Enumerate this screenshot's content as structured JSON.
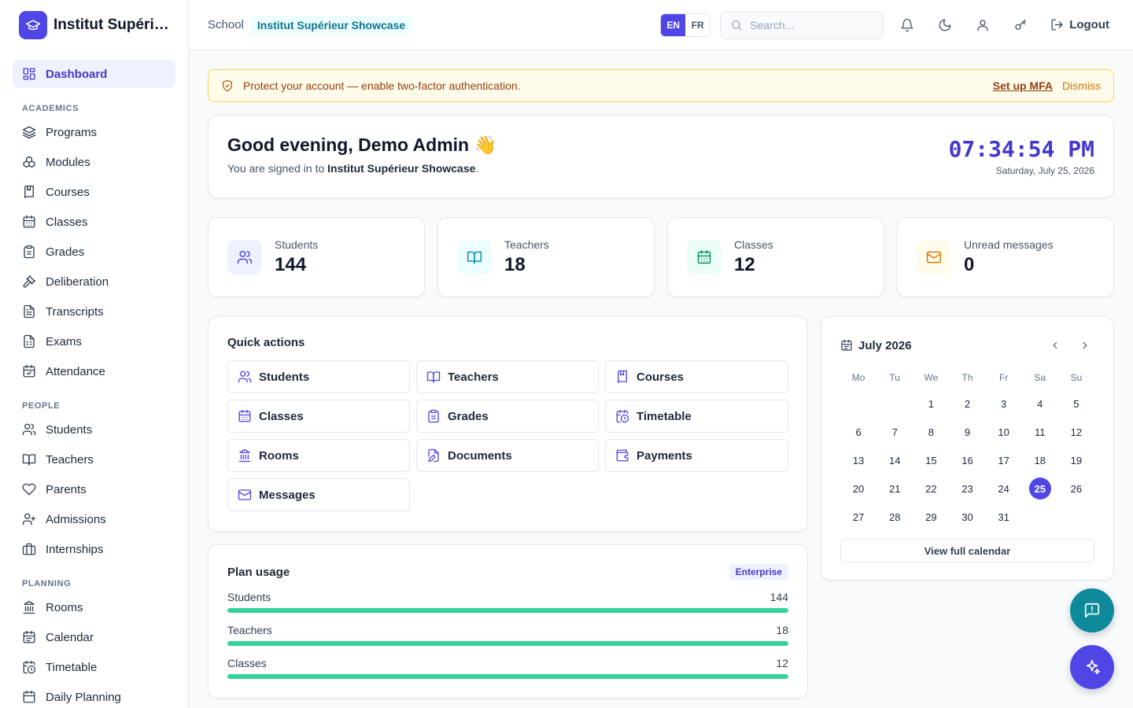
{
  "brand": {
    "name": "Institut Supérieur Showcase"
  },
  "sidebar": {
    "dashboard": "Dashboard",
    "sections": {
      "academics": "ACADEMICS",
      "people": "PEOPLE",
      "planning": "PLANNING"
    },
    "academics": [
      "Programs",
      "Modules",
      "Courses",
      "Classes",
      "Grades",
      "Deliberation",
      "Transcripts",
      "Exams",
      "Attendance"
    ],
    "people": [
      "Students",
      "Teachers",
      "Parents",
      "Admissions",
      "Internships"
    ],
    "planning": [
      "Rooms",
      "Calendar",
      "Timetable",
      "Daily Planning"
    ]
  },
  "topbar": {
    "crumb_label": "School",
    "school_name": "Institut Supérieur Showcase",
    "lang_en": "EN",
    "lang_fr": "FR",
    "search_placeholder": "Search...",
    "logout": "Logout"
  },
  "alert": {
    "text": "Protect your account — enable two-factor authentication.",
    "action": "Set up MFA",
    "dismiss": "Dismiss"
  },
  "greeting": {
    "title": "Good evening, Demo Admin 👋",
    "sub_prefix": "You are signed in to",
    "sub_school": "Institut Supérieur Showcase",
    "sub_suffix": ".",
    "time": "07:34:54 PM",
    "date": "Saturday, July 25, 2026"
  },
  "stats": {
    "students": {
      "label": "Students",
      "value": "144"
    },
    "teachers": {
      "label": "Teachers",
      "value": "18"
    },
    "classes": {
      "label": "Classes",
      "value": "12"
    },
    "messages": {
      "label": "Unread messages",
      "value": "0"
    }
  },
  "quick_actions": {
    "title": "Quick actions",
    "items": [
      "Students",
      "Teachers",
      "Courses",
      "Classes",
      "Grades",
      "Timetable",
      "Rooms",
      "Documents",
      "Payments",
      "Messages"
    ]
  },
  "plan": {
    "title": "Plan usage",
    "tier": "Enterprise",
    "rows": [
      {
        "label": "Students",
        "value": "144",
        "fill": 1.0
      },
      {
        "label": "Teachers",
        "value": "18",
        "fill": 1.0
      },
      {
        "label": "Classes",
        "value": "12",
        "fill": 1.0
      }
    ]
  },
  "calendar": {
    "title": "July 2026",
    "weekdays": [
      "Mo",
      "Tu",
      "We",
      "Th",
      "Fr",
      "Sa",
      "Su"
    ],
    "leading_blanks": 2,
    "days": 31,
    "today": 25,
    "footer": "View full calendar"
  },
  "colors": {
    "accent": "#4f46e5",
    "teal_fab": "#0e8a9a",
    "progress": "#34d399",
    "alert_bg": "#fffbeb"
  }
}
